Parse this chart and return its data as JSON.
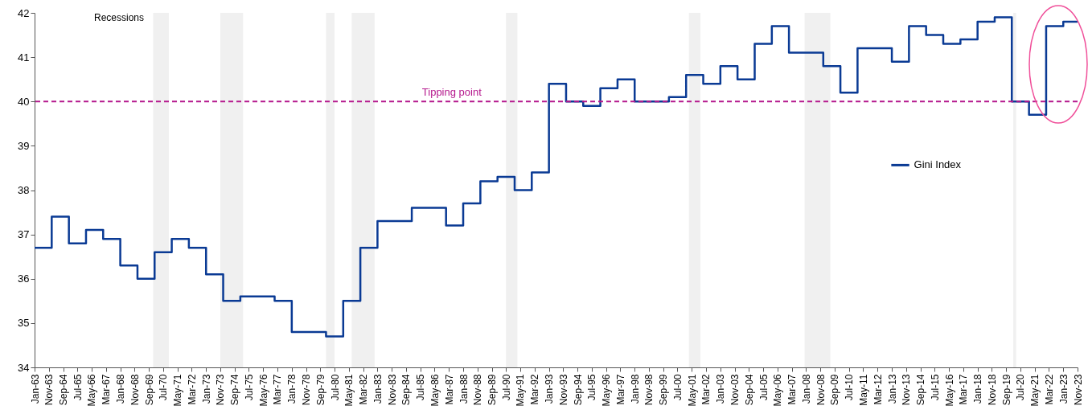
{
  "chart_data": {
    "type": "step",
    "x": [
      "1963-01",
      "1964-01",
      "1965-01",
      "1966-01",
      "1967-01",
      "1968-01",
      "1969-01",
      "1970-01",
      "1971-01",
      "1972-01",
      "1973-01",
      "1974-01",
      "1975-01",
      "1976-01",
      "1977-01",
      "1978-01",
      "1979-01",
      "1980-01",
      "1981-01",
      "1982-01",
      "1983-01",
      "1984-01",
      "1985-01",
      "1986-01",
      "1987-01",
      "1988-01",
      "1989-01",
      "1990-01",
      "1991-01",
      "1992-01",
      "1993-01",
      "1994-01",
      "1995-01",
      "1996-01",
      "1997-01",
      "1998-01",
      "1999-01",
      "2000-01",
      "2001-01",
      "2002-01",
      "2003-01",
      "2004-01",
      "2005-01",
      "2006-01",
      "2007-01",
      "2008-01",
      "2009-01",
      "2010-01",
      "2011-01",
      "2012-01",
      "2013-01",
      "2014-01",
      "2015-01",
      "2016-01",
      "2017-01",
      "2018-01",
      "2019-01",
      "2020-01",
      "2021-01",
      "2022-01",
      "2023-01",
      "2023-11"
    ],
    "series": [
      {
        "name": "Gini Index",
        "color": "#0a3a94",
        "values": [
          36.7,
          37.4,
          36.8,
          37.1,
          36.9,
          36.3,
          36.0,
          36.6,
          36.9,
          36.7,
          36.1,
          35.5,
          35.6,
          35.6,
          35.5,
          34.8,
          34.8,
          34.7,
          35.5,
          36.7,
          37.3,
          37.3,
          37.6,
          37.6,
          37.2,
          37.7,
          38.2,
          38.3,
          38.0,
          38.4,
          40.4,
          40.0,
          39.9,
          40.3,
          40.5,
          40.0,
          40.0,
          40.1,
          40.6,
          40.4,
          40.8,
          40.5,
          41.3,
          41.7,
          41.1,
          41.1,
          40.8,
          40.2,
          41.2,
          41.2,
          40.9,
          41.7,
          41.5,
          41.3,
          41.4,
          41.8,
          41.9,
          40.0,
          39.7,
          41.7,
          41.8,
          41.8
        ]
      }
    ],
    "xlim": [
      "1963-01",
      "2023-11"
    ],
    "xticks": [
      {
        "value": "1963-01",
        "label": "Jan-63"
      },
      {
        "value": "1963-11",
        "label": "Nov-63"
      },
      {
        "value": "1964-09",
        "label": "Sep-64"
      },
      {
        "value": "1965-07",
        "label": "Jul-65"
      },
      {
        "value": "1966-05",
        "label": "May-66"
      },
      {
        "value": "1967-03",
        "label": "Mar-67"
      },
      {
        "value": "1968-01",
        "label": "Jan-68"
      },
      {
        "value": "1968-11",
        "label": "Nov-68"
      },
      {
        "value": "1969-09",
        "label": "Sep-69"
      },
      {
        "value": "1970-07",
        "label": "Jul-70"
      },
      {
        "value": "1971-05",
        "label": "May-71"
      },
      {
        "value": "1972-03",
        "label": "Mar-72"
      },
      {
        "value": "1973-01",
        "label": "Jan-73"
      },
      {
        "value": "1973-11",
        "label": "Nov-73"
      },
      {
        "value": "1974-09",
        "label": "Sep-74"
      },
      {
        "value": "1975-07",
        "label": "Jul-75"
      },
      {
        "value": "1976-05",
        "label": "May-76"
      },
      {
        "value": "1977-03",
        "label": "Mar-77"
      },
      {
        "value": "1978-01",
        "label": "Jan-78"
      },
      {
        "value": "1978-11",
        "label": "Nov-78"
      },
      {
        "value": "1979-09",
        "label": "Sep-79"
      },
      {
        "value": "1980-07",
        "label": "Jul-80"
      },
      {
        "value": "1981-05",
        "label": "May-81"
      },
      {
        "value": "1982-03",
        "label": "Mar-82"
      },
      {
        "value": "1983-01",
        "label": "Jan-83"
      },
      {
        "value": "1983-11",
        "label": "Nov-83"
      },
      {
        "value": "1984-09",
        "label": "Sep-84"
      },
      {
        "value": "1985-07",
        "label": "Jul-85"
      },
      {
        "value": "1986-05",
        "label": "May-86"
      },
      {
        "value": "1987-03",
        "label": "Mar-87"
      },
      {
        "value": "1988-01",
        "label": "Jan-88"
      },
      {
        "value": "1988-11",
        "label": "Nov-88"
      },
      {
        "value": "1989-09",
        "label": "Sep-89"
      },
      {
        "value": "1990-07",
        "label": "Jul-90"
      },
      {
        "value": "1991-05",
        "label": "May-91"
      },
      {
        "value": "1992-03",
        "label": "Mar-92"
      },
      {
        "value": "1993-01",
        "label": "Jan-93"
      },
      {
        "value": "1993-11",
        "label": "Nov-93"
      },
      {
        "value": "1994-09",
        "label": "Sep-94"
      },
      {
        "value": "1995-07",
        "label": "Jul-95"
      },
      {
        "value": "1996-05",
        "label": "May-96"
      },
      {
        "value": "1997-03",
        "label": "Mar-97"
      },
      {
        "value": "1998-01",
        "label": "Jan-98"
      },
      {
        "value": "1998-11",
        "label": "Nov-98"
      },
      {
        "value": "1999-09",
        "label": "Sep-99"
      },
      {
        "value": "2000-07",
        "label": "Jul-00"
      },
      {
        "value": "2001-05",
        "label": "May-01"
      },
      {
        "value": "2002-03",
        "label": "Mar-02"
      },
      {
        "value": "2003-01",
        "label": "Jan-03"
      },
      {
        "value": "2003-11",
        "label": "Nov-03"
      },
      {
        "value": "2004-09",
        "label": "Sep-04"
      },
      {
        "value": "2005-07",
        "label": "Jul-05"
      },
      {
        "value": "2006-05",
        "label": "May-06"
      },
      {
        "value": "2007-03",
        "label": "Mar-07"
      },
      {
        "value": "2008-01",
        "label": "Jan-08"
      },
      {
        "value": "2008-11",
        "label": "Nov-08"
      },
      {
        "value": "2009-09",
        "label": "Sep-09"
      },
      {
        "value": "2010-07",
        "label": "Jul-10"
      },
      {
        "value": "2011-05",
        "label": "May-11"
      },
      {
        "value": "2012-03",
        "label": "Mar-12"
      },
      {
        "value": "2013-01",
        "label": "Jan-13"
      },
      {
        "value": "2013-11",
        "label": "Nov-13"
      },
      {
        "value": "2014-09",
        "label": "Sep-14"
      },
      {
        "value": "2015-07",
        "label": "Jul-15"
      },
      {
        "value": "2016-05",
        "label": "May-16"
      },
      {
        "value": "2017-03",
        "label": "Mar-17"
      },
      {
        "value": "2018-01",
        "label": "Jan-18"
      },
      {
        "value": "2018-11",
        "label": "Nov-18"
      },
      {
        "value": "2019-09",
        "label": "Sep-19"
      },
      {
        "value": "2020-07",
        "label": "Jul-20"
      },
      {
        "value": "2021-05",
        "label": "May-21"
      },
      {
        "value": "2022-03",
        "label": "Mar-22"
      },
      {
        "value": "2023-01",
        "label": "Jan-23"
      },
      {
        "value": "2023-11",
        "label": "Nov-23"
      }
    ],
    "ylim": [
      34,
      42
    ],
    "yticks": [
      34,
      35,
      36,
      37,
      38,
      39,
      40,
      41,
      42
    ],
    "ref_lines": [
      {
        "axis": "y",
        "value": 40,
        "label": "Tipping point",
        "color": "#b5198d",
        "line_style": "dashed"
      }
    ],
    "bands": [
      {
        "axis": "x",
        "from": "1969-12",
        "to": "1970-11",
        "color": "#f0f0f0"
      },
      {
        "axis": "x",
        "from": "1973-11",
        "to": "1975-03",
        "color": "#f0f0f0"
      },
      {
        "axis": "x",
        "from": "1980-01",
        "to": "1980-07",
        "color": "#f0f0f0"
      },
      {
        "axis": "x",
        "from": "1981-07",
        "to": "1982-11",
        "color": "#f0f0f0"
      },
      {
        "axis": "x",
        "from": "1990-07",
        "to": "1991-03",
        "color": "#f0f0f0"
      },
      {
        "axis": "x",
        "from": "2001-03",
        "to": "2001-11",
        "color": "#f0f0f0"
      },
      {
        "axis": "x",
        "from": "2007-12",
        "to": "2009-06",
        "color": "#f0f0f0"
      },
      {
        "axis": "x",
        "from": "2020-02",
        "to": "2020-04",
        "color": "#f0f0f0"
      }
    ],
    "annotations": [
      "Recessions"
    ],
    "grid": false,
    "legend": "right"
  }
}
